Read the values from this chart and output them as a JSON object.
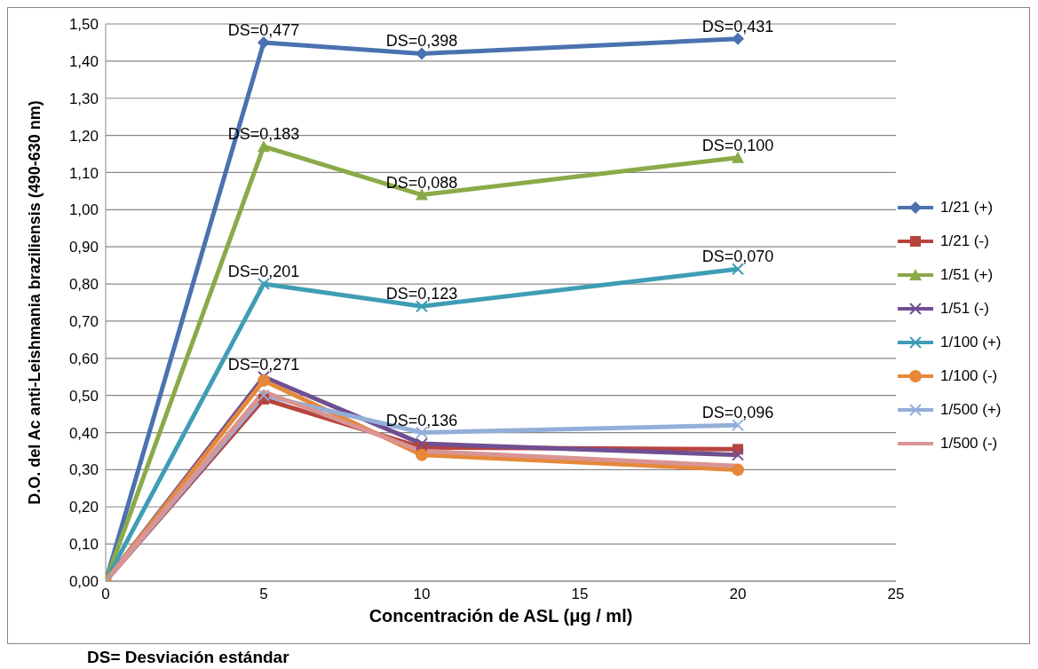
{
  "chart_data": {
    "type": "line",
    "xlabel": "Concentración de  ASL (μg / ml)",
    "ylabel": "D.O.  del Ac anti-Leishmania braziliensis  (490-630 nm)",
    "x": [
      0,
      5,
      10,
      20
    ],
    "series": [
      {
        "name": "1/21 (+)",
        "color": "#4a72b0",
        "marker": "diamond",
        "values": [
          0,
          1.45,
          1.42,
          1.46
        ]
      },
      {
        "name": "1/21 (-)",
        "color": "#b8433f",
        "marker": "square",
        "values": [
          0,
          0.49,
          0.36,
          0.355
        ]
      },
      {
        "name": "1/51 (+)",
        "color": "#8aaa48",
        "marker": "triangle",
        "values": [
          0,
          1.17,
          1.04,
          1.14
        ]
      },
      {
        "name": "1/51 (-)",
        "color": "#6f4f92",
        "marker": "cross",
        "values": [
          0,
          0.55,
          0.37,
          0.34
        ]
      },
      {
        "name": "1/100 (+)",
        "color": "#3f9db5",
        "marker": "cross",
        "values": [
          0,
          0.8,
          0.74,
          0.84
        ]
      },
      {
        "name": "1/100 (-)",
        "color": "#e5883a",
        "marker": "circle",
        "values": [
          0,
          0.54,
          0.34,
          0.3
        ]
      },
      {
        "name": "1/500 (+)",
        "color": "#93aed8",
        "marker": "cross",
        "values": [
          0,
          0.5,
          0.4,
          0.42
        ]
      },
      {
        "name": "1/500 (-)",
        "color": "#d99594",
        "marker": "none",
        "values": [
          0,
          0.51,
          0.35,
          0.31
        ]
      }
    ],
    "xlim": [
      0,
      25
    ],
    "xticks": [
      0,
      5,
      10,
      15,
      20,
      25
    ],
    "ylim": [
      0,
      1.5
    ],
    "yticks": [
      {
        "value": 0,
        "label": "0,00"
      },
      {
        "value": 0.1,
        "label": "0,10"
      },
      {
        "value": 0.2,
        "label": "0,20"
      },
      {
        "value": 0.3,
        "label": "0,30"
      },
      {
        "value": 0.4,
        "label": "0,40"
      },
      {
        "value": 0.5,
        "label": "0,50"
      },
      {
        "value": 0.6,
        "label": "0,60"
      },
      {
        "value": 0.7,
        "label": "0,70"
      },
      {
        "value": 0.8,
        "label": "0,80"
      },
      {
        "value": 0.9,
        "label": "0,90"
      },
      {
        "value": 1.0,
        "label": "1,00"
      },
      {
        "value": 1.1,
        "label": "1,10"
      },
      {
        "value": 1.2,
        "label": "1,20"
      },
      {
        "value": 1.3,
        "label": "1,30"
      },
      {
        "value": 1.4,
        "label": "1,40"
      },
      {
        "value": 1.5,
        "label": "1,50"
      }
    ],
    "grid": "y",
    "legend": "right",
    "annotations": [
      {
        "text": "DS=0,477",
        "x": 5,
        "y": 1.45
      },
      {
        "text": "DS=0,398",
        "x": 10,
        "y": 1.42
      },
      {
        "text": "DS=0,431",
        "x": 20,
        "y": 1.46
      },
      {
        "text": "DS=0,183",
        "x": 5,
        "y": 1.17
      },
      {
        "text": "DS=0,088",
        "x": 10,
        "y": 1.04
      },
      {
        "text": "DS=0,100",
        "x": 20,
        "y": 1.14
      },
      {
        "text": "DS=0,201",
        "x": 5,
        "y": 0.8
      },
      {
        "text": "DS=0,123",
        "x": 10,
        "y": 0.74
      },
      {
        "text": "DS=0,070",
        "x": 20,
        "y": 0.84
      },
      {
        "text": "DS=0,271",
        "x": 5,
        "y": 0.55
      },
      {
        "text": "DS=0,136",
        "x": 10,
        "y": 0.4
      },
      {
        "text": "DS=0,096",
        "x": 20,
        "y": 0.42
      },
      "DS= Desviación estándar"
    ]
  }
}
